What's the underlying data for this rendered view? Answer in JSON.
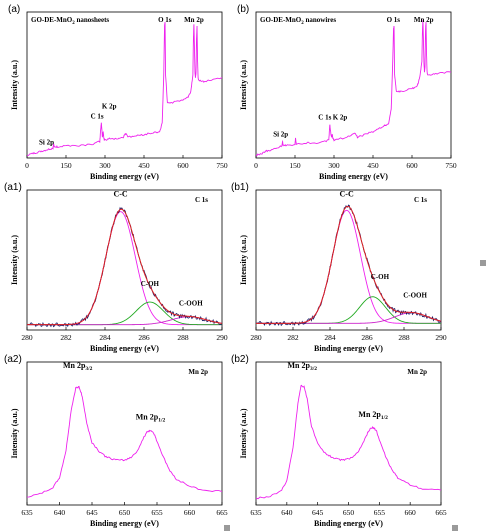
{
  "chart_data": [
    {
      "id": "a",
      "panel_label": "(a)",
      "type": "line",
      "title": "GO-DE-MnO2 nanosheets",
      "xlabel": "Binding energy (eV)",
      "ylabel": "Intensity (a.u.)",
      "xlim": [
        0,
        750
      ],
      "xticks": [
        0,
        150,
        300,
        450,
        600,
        750
      ],
      "annotations": [
        {
          "text": "Si 2p",
          "x": 75
        },
        {
          "text": "C 1s",
          "x": 285
        },
        {
          "text": "K 2p",
          "x": 293
        },
        {
          "text": "O 1s",
          "x": 530
        },
        {
          "text": "Mn 2p",
          "x": 642
        }
      ],
      "series": [
        {
          "color": "#ee22ee",
          "x": [
            0,
            20,
            40,
            60,
            80,
            100,
            102,
            105,
            120,
            150,
            200,
            250,
            280,
            284,
            286,
            290,
            293,
            296,
            300,
            320,
            350,
            370,
            380,
            390,
            420,
            450,
            480,
            510,
            520,
            526,
            529,
            531,
            533,
            540,
            560,
            600,
            620,
            630,
            638,
            640,
            642,
            644,
            646,
            648,
            650,
            652,
            654,
            656,
            658,
            660,
            680,
            700,
            750
          ],
          "y": [
            0.02,
            0.03,
            0.04,
            0.05,
            0.06,
            0.07,
            0.1,
            0.08,
            0.08,
            0.09,
            0.09,
            0.1,
            0.12,
            0.22,
            0.25,
            0.15,
            0.19,
            0.14,
            0.13,
            0.14,
            0.14,
            0.15,
            0.18,
            0.15,
            0.16,
            0.17,
            0.18,
            0.19,
            0.25,
            0.6,
            0.95,
            0.98,
            0.6,
            0.4,
            0.4,
            0.42,
            0.44,
            0.48,
            0.6,
            0.85,
            0.97,
            0.8,
            0.62,
            0.58,
            0.62,
            0.86,
            0.95,
            0.7,
            0.58,
            0.56,
            0.55,
            0.56,
            0.58
          ]
        }
      ]
    },
    {
      "id": "b",
      "panel_label": "(b)",
      "type": "line",
      "title": "GO-DE-MnO2 nanowires",
      "xlabel": "Binding energy (eV)",
      "ylabel": "Intensity (a.u.)",
      "xlim": [
        0,
        750
      ],
      "xticks": [
        0,
        150,
        300,
        450,
        600,
        750
      ],
      "annotations": [
        {
          "text": "Si 2p",
          "x": 95
        },
        {
          "text": "C 1s",
          "x": 280
        },
        {
          "text": "K 2p",
          "x": 300
        },
        {
          "text": "O 1s",
          "x": 528
        },
        {
          "text": "Mn 2p",
          "x": 645
        }
      ],
      "series": [
        {
          "color": "#ee22ee",
          "x": [
            0,
            20,
            40,
            60,
            80,
            100,
            102,
            105,
            120,
            150,
            152,
            155,
            200,
            250,
            280,
            284,
            286,
            290,
            293,
            296,
            300,
            350,
            380,
            390,
            420,
            450,
            480,
            510,
            520,
            526,
            529,
            531,
            533,
            540,
            560,
            600,
            620,
            630,
            638,
            640,
            642,
            644,
            646,
            648,
            650,
            652,
            654,
            656,
            658,
            660,
            680,
            700,
            750
          ],
          "y": [
            0.02,
            0.03,
            0.05,
            0.06,
            0.07,
            0.09,
            0.12,
            0.09,
            0.09,
            0.1,
            0.14,
            0.1,
            0.11,
            0.11,
            0.13,
            0.24,
            0.2,
            0.15,
            0.17,
            0.14,
            0.13,
            0.15,
            0.18,
            0.15,
            0.17,
            0.19,
            0.22,
            0.25,
            0.35,
            0.7,
            0.93,
            0.95,
            0.6,
            0.48,
            0.48,
            0.5,
            0.52,
            0.58,
            0.7,
            0.9,
            1.0,
            0.85,
            0.68,
            0.62,
            0.66,
            0.92,
            0.98,
            0.74,
            0.62,
            0.6,
            0.6,
            0.61,
            0.62
          ]
        }
      ]
    },
    {
      "id": "a1",
      "panel_label": "(a1)",
      "type": "line",
      "title": "C 1s",
      "xlabel": "Binding energy (eV)",
      "ylabel": "Intensity (a.u.)",
      "xlim": [
        280,
        290
      ],
      "xticks": [
        280,
        282,
        284,
        286,
        288,
        290
      ],
      "annotations": [
        {
          "text": "C-C",
          "x": 284.8,
          "y": 0.98
        },
        {
          "text": "C-OH",
          "x": 286.3,
          "y": 0.31
        },
        {
          "text": "C-OOH",
          "x": 288.4,
          "y": 0.16
        }
      ],
      "components": [
        {
          "label": "C-C",
          "center": 284.8,
          "height": 0.85,
          "width": 0.75,
          "color": "#ee22ee"
        },
        {
          "label": "C-OH",
          "center": 286.3,
          "height": 0.17,
          "width": 0.7,
          "color": "#22aa22"
        },
        {
          "label": "C-OOH",
          "center": 288.3,
          "height": 0.06,
          "width": 0.9,
          "color": "#cc22cc"
        }
      ],
      "baseline": 0.04,
      "raw_color": "#1a1a66",
      "fit_color": "#dd2222"
    },
    {
      "id": "b1",
      "panel_label": "(b1)",
      "type": "line",
      "title": "C 1s",
      "xlabel": "Binding energy (eV)",
      "ylabel": "Intensity (a.u.)",
      "xlim": [
        280,
        290
      ],
      "xticks": [
        280,
        282,
        284,
        286,
        288,
        290
      ],
      "annotations": [
        {
          "text": "C-C",
          "x": 284.9,
          "y": 0.98
        },
        {
          "text": "C-OH",
          "x": 286.7,
          "y": 0.36
        },
        {
          "text": "C-OOH",
          "x": 288.6,
          "y": 0.22
        }
      ],
      "components": [
        {
          "label": "C-C",
          "center": 284.9,
          "height": 0.85,
          "width": 0.75,
          "color": "#ee22ee"
        },
        {
          "label": "C-OH",
          "center": 286.3,
          "height": 0.2,
          "width": 0.7,
          "color": "#22aa22"
        },
        {
          "label": "C-OOH",
          "center": 288.4,
          "height": 0.08,
          "width": 0.9,
          "color": "#cc22cc"
        }
      ],
      "baseline": 0.05,
      "raw_color": "#1a1a66",
      "fit_color": "#dd2222"
    },
    {
      "id": "a2",
      "panel_label": "(a2)",
      "type": "line",
      "title": "Mn 2p",
      "xlabel": "Binding energy (eV)",
      "ylabel": "Intensity (a.u.)",
      "xlim": [
        635,
        665
      ],
      "xticks": [
        635,
        640,
        645,
        650,
        655,
        660,
        665
      ],
      "annotations": [
        {
          "text": "Mn 2p3/2",
          "main": "Mn 2p",
          "sub": "3/2",
          "x": 642.8,
          "y": 0.98
        },
        {
          "text": "Mn 2p1/2",
          "main": "Mn 2p",
          "sub": "1/2",
          "x": 654.0,
          "y": 0.6
        }
      ],
      "series": [
        {
          "color": "#ee22ee",
          "x": [
            635,
            637,
            639,
            640,
            641,
            641.8,
            642.5,
            643,
            643.5,
            644.2,
            645,
            646,
            647,
            648,
            649,
            650,
            651,
            652,
            653,
            653.5,
            654,
            654.5,
            655,
            656,
            657,
            658,
            660,
            662,
            665
          ],
          "y": [
            0.06,
            0.08,
            0.13,
            0.2,
            0.4,
            0.7,
            0.86,
            0.87,
            0.8,
            0.6,
            0.46,
            0.4,
            0.36,
            0.34,
            0.33,
            0.33,
            0.35,
            0.4,
            0.5,
            0.54,
            0.55,
            0.53,
            0.47,
            0.35,
            0.25,
            0.19,
            0.14,
            0.11,
            0.1
          ]
        }
      ]
    },
    {
      "id": "b2",
      "panel_label": "(b2)",
      "type": "line",
      "title": "Mn 2p",
      "xlabel": "Binding energy (eV)",
      "ylabel": "Intensity (a.u.)",
      "xlim": [
        635,
        665
      ],
      "xticks": [
        635,
        640,
        645,
        650,
        655,
        660,
        665
      ],
      "annotations": [
        {
          "text": "Mn 2p3/2",
          "main": "Mn 2p",
          "sub": "3/2",
          "x": 642.5,
          "y": 0.98
        },
        {
          "text": "Mn 2p1/2",
          "main": "Mn 2p",
          "sub": "1/2",
          "x": 654.0,
          "y": 0.62
        }
      ],
      "series": [
        {
          "color": "#ee22ee",
          "x": [
            635,
            637,
            639,
            640,
            641,
            641.8,
            642.3,
            642.8,
            643.3,
            644,
            645,
            646,
            647,
            648,
            649,
            650,
            651,
            652,
            653,
            653.5,
            654,
            654.5,
            655,
            656,
            657,
            658,
            660,
            662,
            665
          ],
          "y": [
            0.05,
            0.06,
            0.1,
            0.18,
            0.42,
            0.75,
            0.88,
            0.87,
            0.78,
            0.58,
            0.45,
            0.39,
            0.36,
            0.34,
            0.33,
            0.34,
            0.36,
            0.42,
            0.52,
            0.56,
            0.57,
            0.55,
            0.48,
            0.36,
            0.26,
            0.2,
            0.15,
            0.12,
            0.11
          ]
        }
      ]
    }
  ]
}
